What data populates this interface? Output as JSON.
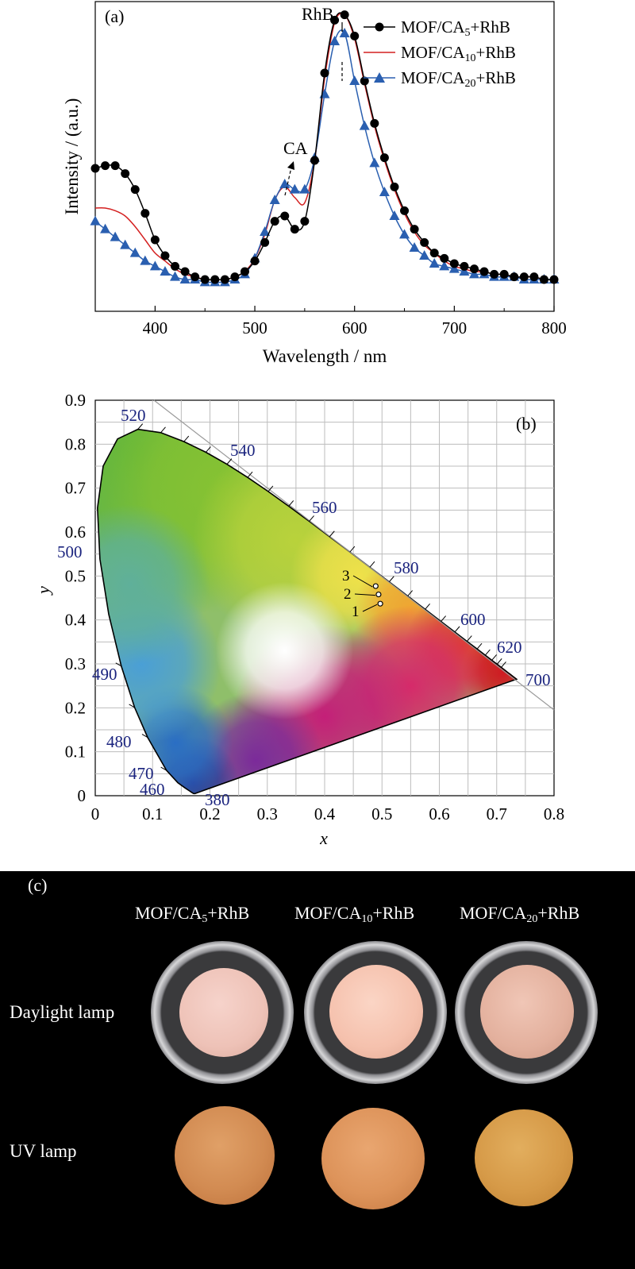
{
  "panel_a": {
    "label": "(a)",
    "annotation_rhb": "RhB",
    "annotation_ca": "CA",
    "colors": {
      "ca5": "#000000",
      "ca10": "#d42020",
      "ca20": "#2a5fb0"
    }
  },
  "panel_b": {
    "label": "(b)",
    "xlabel": "x",
    "ylabel": "y",
    "points": [
      "1",
      "2",
      "3"
    ]
  },
  "panel_c": {
    "label": "(c)",
    "samples": [
      {
        "base": "MOF/CA",
        "sub": "5",
        "suffix": "+RhB"
      },
      {
        "base": "MOF/CA",
        "sub": "10",
        "suffix": "+RhB"
      },
      {
        "base": "MOF/CA",
        "sub": "20",
        "suffix": "+RhB"
      }
    ],
    "rows": [
      "Daylight lamp",
      "UV lamp"
    ]
  },
  "chart_data": [
    {
      "type": "line",
      "title": "",
      "xlabel": "Wavelength / nm",
      "ylabel": "Intensity / (a.u.)",
      "xlim": [
        340,
        800
      ],
      "ylim": [
        -0.12,
        1.05
      ],
      "xticks": [
        400,
        500,
        600,
        700,
        800
      ],
      "legend_position": "top-right",
      "x": [
        340,
        350,
        360,
        370,
        380,
        390,
        400,
        410,
        420,
        430,
        440,
        450,
        460,
        470,
        480,
        490,
        500,
        510,
        520,
        530,
        540,
        550,
        560,
        570,
        580,
        590,
        600,
        610,
        620,
        630,
        640,
        650,
        660,
        670,
        680,
        690,
        700,
        710,
        720,
        730,
        740,
        750,
        760,
        770,
        780,
        790,
        800
      ],
      "series": [
        {
          "name": "MOF/CA5+RhB",
          "marker": "circle",
          "values": [
            0.42,
            0.43,
            0.43,
            0.4,
            0.34,
            0.25,
            0.15,
            0.09,
            0.05,
            0.03,
            0.01,
            0.0,
            0.0,
            0.0,
            0.01,
            0.03,
            0.07,
            0.14,
            0.22,
            0.24,
            0.19,
            0.22,
            0.45,
            0.78,
            0.98,
            1.0,
            0.92,
            0.75,
            0.59,
            0.46,
            0.35,
            0.26,
            0.19,
            0.14,
            0.1,
            0.08,
            0.06,
            0.05,
            0.04,
            0.03,
            0.02,
            0.02,
            0.01,
            0.01,
            0.01,
            0.0,
            0.0
          ]
        },
        {
          "name": "MOF/CA10+RhB",
          "marker": "none",
          "values": [
            0.27,
            0.27,
            0.26,
            0.24,
            0.2,
            0.15,
            0.1,
            0.07,
            0.04,
            0.02,
            0.01,
            0.0,
            0.0,
            0.0,
            0.01,
            0.03,
            0.08,
            0.17,
            0.3,
            0.35,
            0.31,
            0.29,
            0.45,
            0.76,
            0.97,
            1.0,
            0.91,
            0.74,
            0.58,
            0.45,
            0.34,
            0.25,
            0.18,
            0.13,
            0.1,
            0.07,
            0.05,
            0.04,
            0.03,
            0.03,
            0.02,
            0.02,
            0.01,
            0.01,
            0.01,
            0.0,
            0.0
          ]
        },
        {
          "name": "MOF/CA20+RhB",
          "marker": "triangle",
          "values": [
            0.22,
            0.19,
            0.16,
            0.13,
            0.1,
            0.07,
            0.05,
            0.03,
            0.01,
            0.0,
            0.0,
            -0.01,
            -0.01,
            -0.01,
            0.0,
            0.02,
            0.08,
            0.18,
            0.3,
            0.36,
            0.34,
            0.34,
            0.46,
            0.7,
            0.9,
            0.93,
            0.75,
            0.58,
            0.44,
            0.33,
            0.24,
            0.17,
            0.12,
            0.09,
            0.06,
            0.05,
            0.04,
            0.03,
            0.02,
            0.02,
            0.01,
            0.01,
            0.01,
            0.0,
            0.0,
            0.0,
            0.0
          ]
        }
      ]
    },
    {
      "type": "scatter",
      "title": "",
      "xlabel": "x",
      "ylabel": "y",
      "xlim": [
        0,
        0.8
      ],
      "ylim": [
        0,
        0.9
      ],
      "xticks": [
        "0",
        "0.1",
        "0.2",
        "0.3",
        "0.4",
        "0.5",
        "0.6",
        "0.7",
        "0.8"
      ],
      "yticks": [
        "0",
        "0.1",
        "0.2",
        "0.3",
        "0.4",
        "0.5",
        "0.6",
        "0.7",
        "0.8",
        "0.9"
      ],
      "grid": true,
      "locus_labels": [
        "380",
        "460",
        "470",
        "480",
        "490",
        "500",
        "520",
        "540",
        "560",
        "580",
        "600",
        "620",
        "700"
      ],
      "points": [
        {
          "label": "1",
          "x": 0.497,
          "y": 0.437
        },
        {
          "label": "2",
          "x": 0.494,
          "y": 0.458
        },
        {
          "label": "3",
          "x": 0.489,
          "y": 0.477
        }
      ]
    }
  ]
}
